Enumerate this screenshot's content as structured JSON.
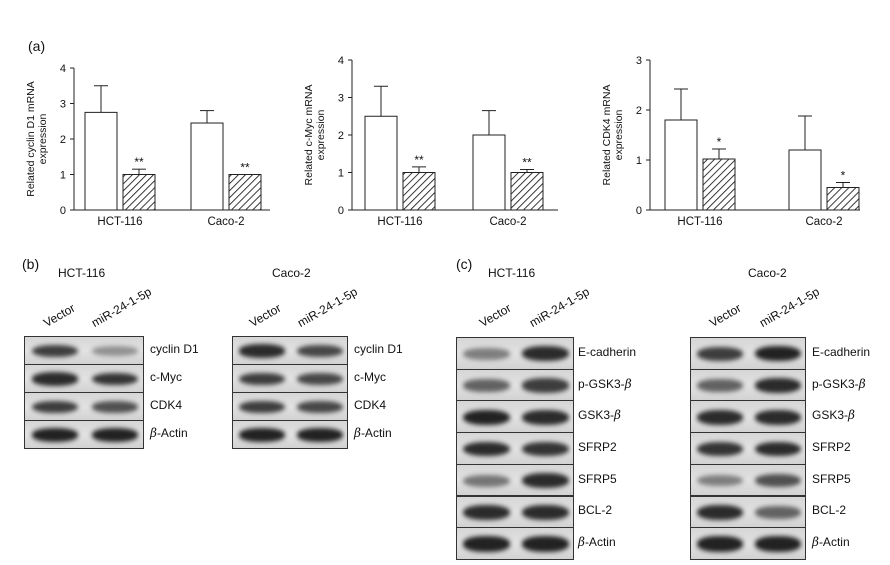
{
  "panel_labels": {
    "a": "(a)",
    "b": "(b)",
    "c": "(c)"
  },
  "chart_data": [
    {
      "type": "bar",
      "title": "",
      "ylabel": "Related cyclin D1 mRNA expression",
      "ylabel_lines": [
        "Related cyclin D1 mRNA",
        "expression"
      ],
      "xlabel": "",
      "categories": [
        "HCT-116",
        "Caco-2"
      ],
      "ylim": [
        0,
        4
      ],
      "yticks": [
        0,
        1,
        2,
        3,
        4
      ],
      "series": [
        {
          "values": [
            2.75,
            2.45
          ],
          "errors": [
            0.75,
            0.35
          ],
          "pattern": "open"
        },
        {
          "values": [
            1.0,
            1.0
          ],
          "errors": [
            0.15,
            0.0
          ],
          "pattern": "hatched"
        }
      ],
      "annotations": [
        [
          "",
          "**"
        ],
        [
          "",
          "**"
        ]
      ]
    },
    {
      "type": "bar",
      "title": "",
      "ylabel": "Related c-Myc mRNA expression",
      "ylabel_lines": [
        "Related c-Myc mRNA",
        "expression"
      ],
      "xlabel": "",
      "categories": [
        "HCT-116",
        "Caco-2"
      ],
      "ylim": [
        0,
        4
      ],
      "yticks": [
        0,
        1,
        2,
        3,
        4
      ],
      "series": [
        {
          "values": [
            2.5,
            2.0
          ],
          "errors": [
            0.8,
            0.65
          ],
          "pattern": "open"
        },
        {
          "values": [
            1.0,
            1.0
          ],
          "errors": [
            0.15,
            0.08
          ],
          "pattern": "hatched"
        }
      ],
      "annotations": [
        [
          "",
          "**"
        ],
        [
          "",
          "**"
        ]
      ]
    },
    {
      "type": "bar",
      "title": "",
      "ylabel": "Related CDK4 mRNA expression",
      "ylabel_lines": [
        "Related CDK4 mRNA",
        "expression"
      ],
      "xlabel": "",
      "categories": [
        "HCT-116",
        "Caco-2"
      ],
      "ylim": [
        0,
        3
      ],
      "yticks": [
        0,
        1,
        2,
        3
      ],
      "series": [
        {
          "values": [
            1.8,
            1.2
          ],
          "errors": [
            0.62,
            0.68
          ],
          "pattern": "open"
        },
        {
          "values": [
            1.02,
            0.45
          ],
          "errors": [
            0.2,
            0.1
          ],
          "pattern": "hatched"
        }
      ],
      "annotations": [
        [
          "",
          "*"
        ],
        [
          "",
          "*"
        ]
      ]
    }
  ],
  "blots": [
    {
      "title": "HCT-116",
      "columns": [
        "Vector",
        "miR-24-1-5p"
      ],
      "rows": [
        {
          "label": "cyclin D1",
          "bands": [
            0.75,
            0.3
          ]
        },
        {
          "label": "c-Myc",
          "bands": [
            0.85,
            0.8
          ]
        },
        {
          "label": "CDK4",
          "bands": [
            0.75,
            0.65
          ]
        },
        {
          "label_greek": "β",
          "label": "-Actin",
          "bands": [
            0.9,
            0.9
          ]
        }
      ]
    },
    {
      "title": "Caco-2",
      "columns": [
        "Vector",
        "miR-24-1-5p"
      ],
      "rows": [
        {
          "label": "cyclin D1",
          "bands": [
            0.85,
            0.7
          ]
        },
        {
          "label": "c-Myc",
          "bands": [
            0.75,
            0.7
          ]
        },
        {
          "label": "CDK4",
          "bands": [
            0.75,
            0.7
          ]
        },
        {
          "label_greek": "β",
          "label": "-Actin",
          "bands": [
            0.9,
            0.9
          ]
        }
      ]
    },
    {
      "title": "HCT-116",
      "columns": [
        "Vector",
        "miR-24-1-5p"
      ],
      "rows": [
        {
          "label": "E-cadherin",
          "bands": [
            0.4,
            0.85
          ]
        },
        {
          "label": "p-GSK3-",
          "label_greek_suffix": "β",
          "bands": [
            0.55,
            0.75
          ]
        },
        {
          "label": "GSK3-",
          "label_greek_suffix": "β",
          "bands": [
            0.9,
            0.85
          ]
        },
        {
          "label": "SFRP2",
          "bands": [
            0.85,
            0.8
          ]
        },
        {
          "label": "SFRP5",
          "bands": [
            0.45,
            0.85
          ]
        },
        {
          "label": "BCL-2",
          "bands": [
            0.85,
            0.85
          ]
        },
        {
          "label_greek": "β",
          "label": "-Actin",
          "bands": [
            0.9,
            0.9
          ]
        }
      ]
    },
    {
      "title": "Caco-2",
      "columns": [
        "Vector",
        "miR-24-1-5p"
      ],
      "rows": [
        {
          "label": "E-cadherin",
          "bands": [
            0.75,
            0.9
          ]
        },
        {
          "label": "p-GSK3-",
          "label_greek_suffix": "β",
          "bands": [
            0.55,
            0.85
          ]
        },
        {
          "label": "GSK3-",
          "label_greek_suffix": "β",
          "bands": [
            0.85,
            0.85
          ]
        },
        {
          "label": "SFRP2",
          "bands": [
            0.8,
            0.85
          ]
        },
        {
          "label": "SFRP5",
          "bands": [
            0.4,
            0.65
          ]
        },
        {
          "label": "BCL-2",
          "bands": [
            0.85,
            0.55
          ]
        },
        {
          "label_greek": "β",
          "label": "-Actin",
          "bands": [
            0.9,
            0.9
          ]
        }
      ]
    }
  ]
}
